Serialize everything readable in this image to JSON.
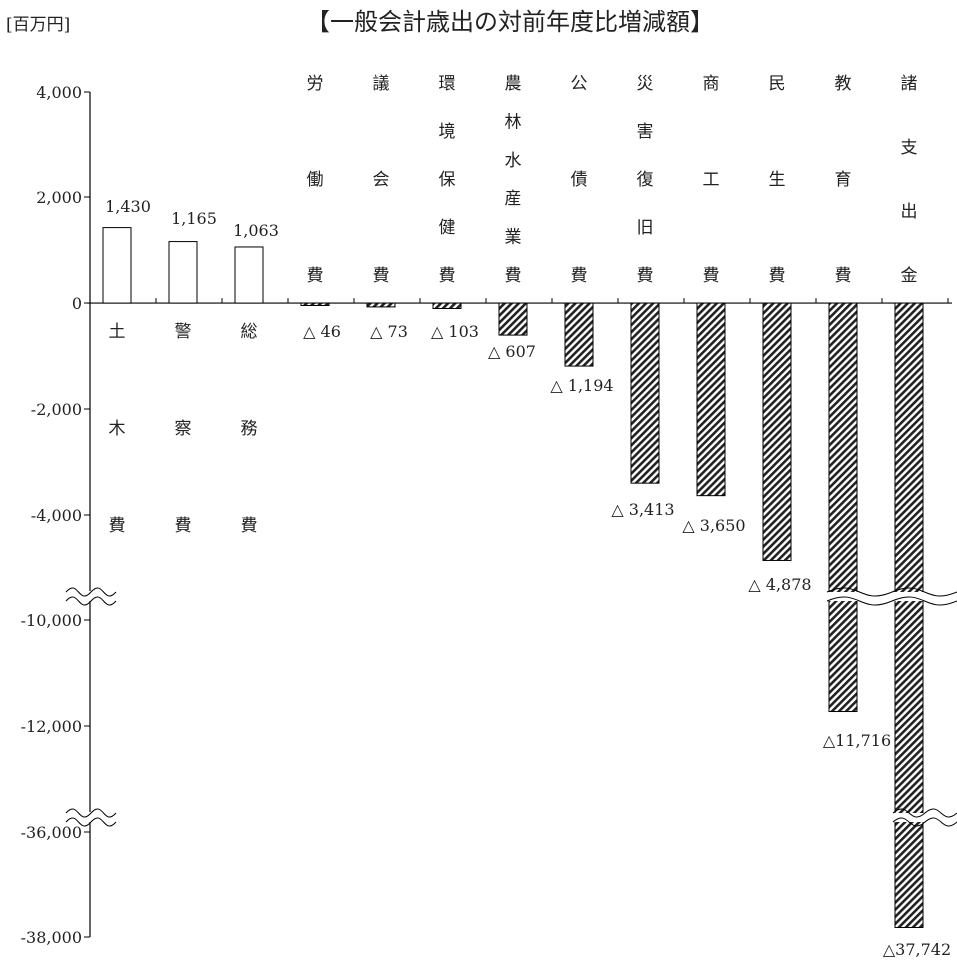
{
  "chart_data": {
    "type": "bar",
    "title": "【一般会計歳出の対前年度比増減額】",
    "unit_label": "[百万円]",
    "categories": [
      "土木費",
      "警察費",
      "総務費",
      "労働費",
      "議会費",
      "環境保健費",
      "農林水産業費",
      "公債費",
      "災害復旧費",
      "商工費",
      "民生費",
      "教育費",
      "諸支出金"
    ],
    "values": [
      1430,
      1165,
      1063,
      -46,
      -73,
      -103,
      -607,
      -1194,
      -3413,
      -3650,
      -4878,
      -11716,
      -37742
    ],
    "value_labels": [
      "1,430",
      "1,165",
      "1,063",
      "△ 46",
      "△ 73",
      "△ 103",
      "△ 607",
      "△ 1,194",
      "△ 3,413",
      "△ 3,650",
      "△ 4,878",
      "△11,716",
      "△37,742"
    ],
    "y_ticks": [
      "4,000",
      "2,000",
      "0",
      "-2,000",
      "-4,000",
      "-10,000",
      "-12,000",
      "-36,000",
      "-38,000"
    ],
    "axis_breaks": [
      "-4,000 〜 -10,000",
      "-12,000 〜 -36,000"
    ],
    "colors": {
      "increase_fill": "#ffffff",
      "decrease_pattern": "diagonal-hatch",
      "stroke": "#000000"
    },
    "grid": false,
    "legend": "none"
  }
}
